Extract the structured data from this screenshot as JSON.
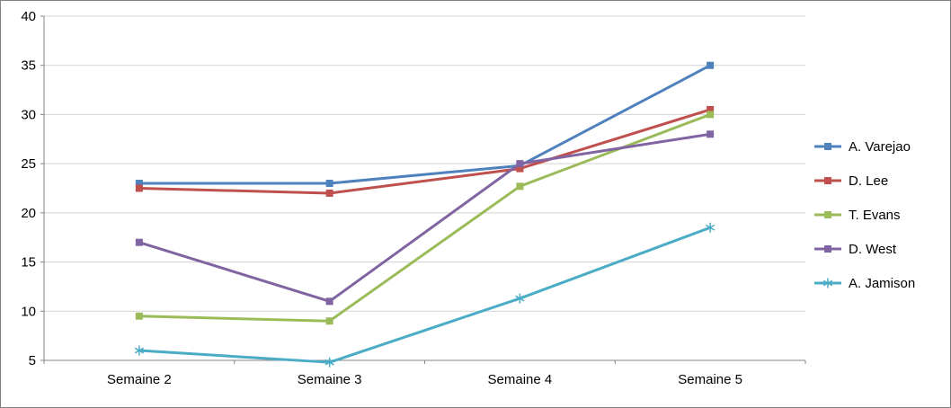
{
  "chart_data": {
    "type": "line",
    "title": "",
    "xlabel": "",
    "ylabel": "",
    "categories": [
      "Semaine 2",
      "Semaine 3",
      "Semaine 4",
      "Semaine 5"
    ],
    "series": [
      {
        "name": "A. Varejao",
        "color": "#4F81BD",
        "marker": "square",
        "values": [
          23,
          23,
          24.8,
          35
        ]
      },
      {
        "name": "D. Lee",
        "color": "#C0504D",
        "marker": "square",
        "values": [
          22.5,
          22,
          24.5,
          30.5
        ]
      },
      {
        "name": "T. Evans",
        "color": "#9BBB59",
        "marker": "square",
        "values": [
          9.5,
          9,
          22.7,
          30
        ]
      },
      {
        "name": "D. West",
        "color": "#8064A2",
        "marker": "square",
        "values": [
          17,
          11,
          25,
          28
        ]
      },
      {
        "name": "A. Jamison",
        "color": "#4BACC6",
        "marker": "asterisk",
        "values": [
          6,
          4.8,
          11.3,
          18.5
        ]
      }
    ],
    "ylim": [
      5,
      40
    ],
    "yticks": [
      5,
      10,
      15,
      20,
      25,
      30,
      35,
      40
    ],
    "grid": true,
    "legend_position": "right",
    "colors": {
      "gridline": "#D3D3D3",
      "axis_line": "#868686",
      "tick_text": "#000000"
    }
  }
}
